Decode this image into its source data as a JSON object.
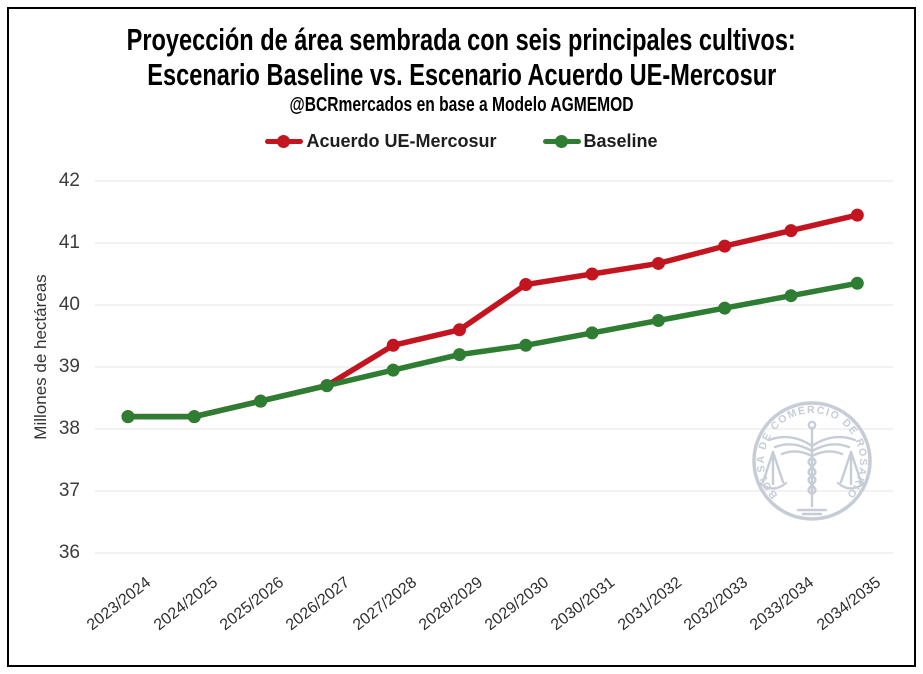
{
  "header": {
    "title_line1": "Proyección de área sembrada con seis principales cultivos:",
    "title_line2": "Escenario Baseline vs. Escenario Acuerdo UE-Mercosur",
    "subtitle": "@BCRmercados en base a Modelo AGMEMOD"
  },
  "watermark": {
    "text": "BOLSA DE COMERCIO DE ROSARIO",
    "color": "#c6cdd7"
  },
  "chart_data": {
    "type": "line",
    "title": "Proyección de área sembrada con seis principales cultivos: Escenario Baseline vs. Escenario Acuerdo UE-Mercosur",
    "subtitle": "@BCRmercados en base a Modelo AGMEMOD",
    "xlabel": "",
    "ylabel": "Millones de hectáreas",
    "ylim": [
      36,
      42
    ],
    "yticks": [
      36,
      37,
      38,
      39,
      40,
      41,
      42
    ],
    "grid": "horizontal",
    "grid_color": "#e4e4e4",
    "legend_position": "top",
    "categories": [
      "2023/2024",
      "2024/2025",
      "2025/2026",
      "2026/2027",
      "2027/2028",
      "2028/2029",
      "2029/2030",
      "2030/2031",
      "2031/2032",
      "2032/2033",
      "2033/2034",
      "2034/2035"
    ],
    "series": [
      {
        "name": "Acuerdo UE-Mercosur",
        "color": "#c2151f",
        "values": [
          38.2,
          38.2,
          38.45,
          38.7,
          39.35,
          39.6,
          40.33,
          40.5,
          40.67,
          40.95,
          41.2,
          41.45
        ]
      },
      {
        "name": "Baseline",
        "color": "#2e7d33",
        "values": [
          38.2,
          38.2,
          38.45,
          38.7,
          38.95,
          39.2,
          39.35,
          39.55,
          39.75,
          39.95,
          40.15,
          40.35
        ]
      }
    ]
  }
}
